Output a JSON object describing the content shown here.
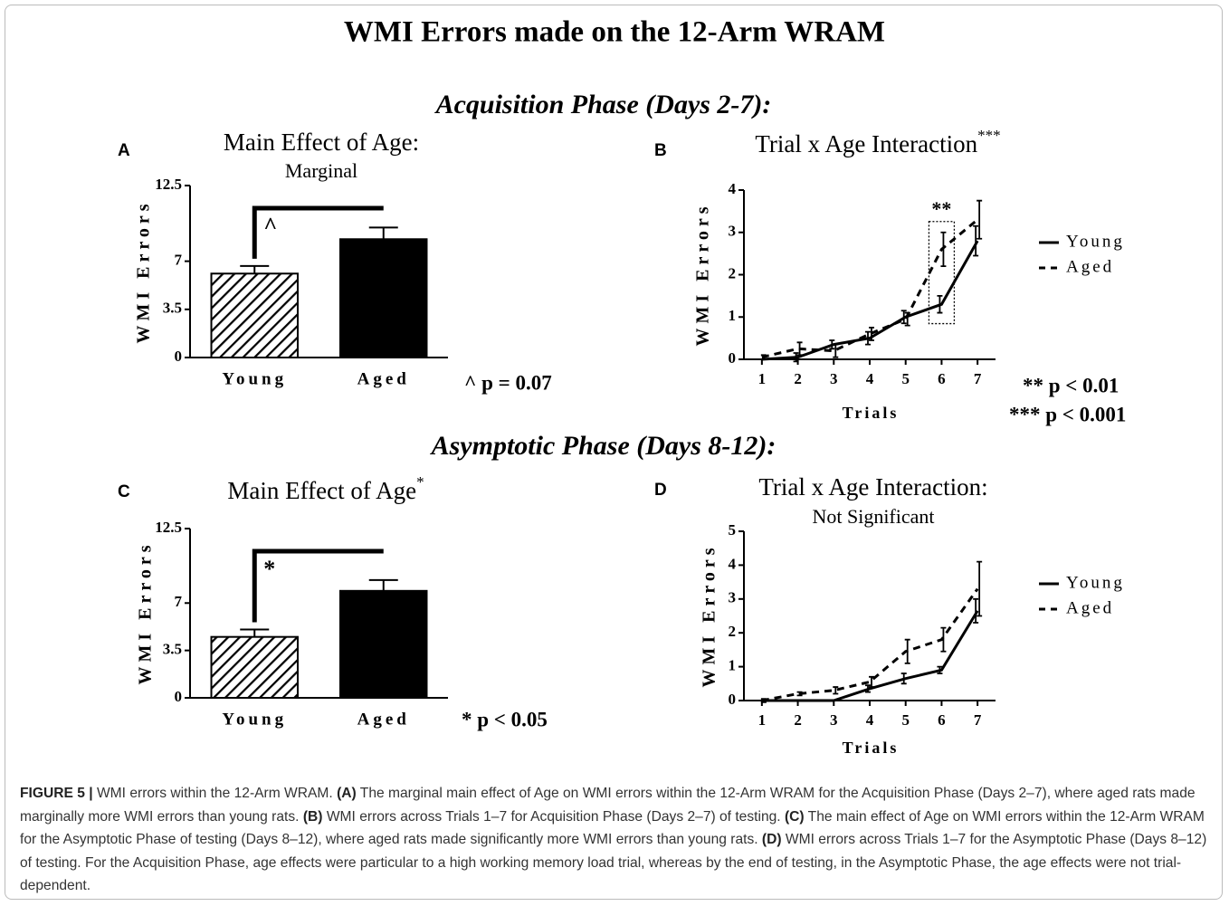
{
  "title": "WMI Errors made on the 12-Arm WRAM",
  "sections": [
    "Acquisition Phase (Days 2-7):",
    "Asymptotic Phase (Days 8-12):"
  ],
  "chart_data": [
    {
      "type": "bar",
      "panel": "A",
      "title": "Main Effect of Age:",
      "subtitle": "Marginal",
      "ylabel": "WMI Errors",
      "categories": [
        "Young",
        "Aged"
      ],
      "values": [
        6.1,
        8.6
      ],
      "errors": [
        0.55,
        0.85
      ],
      "color": "#000000",
      "ylim": [
        0,
        12.5
      ],
      "yticks": [
        0,
        3.5,
        7,
        12.5
      ],
      "significance": "^",
      "notes": [
        "^ p = 0.07"
      ]
    },
    {
      "type": "line",
      "panel": "B",
      "title": "Trial x Age Interaction",
      "title_mark": "***",
      "ylabel": "WMI Errors",
      "xlabel": "Trials",
      "x": [
        1,
        2,
        3,
        4,
        5,
        6,
        7
      ],
      "series": [
        {
          "name": "Young",
          "color": "#000000",
          "dashed": false,
          "values": [
            0,
            0.05,
            0.35,
            0.5,
            1.0,
            1.3,
            2.8
          ],
          "errors": [
            0,
            0.1,
            0.1,
            0.15,
            0.15,
            0.2,
            0.35
          ]
        },
        {
          "name": "Aged",
          "color": "#000000",
          "dashed": true,
          "values": [
            0.05,
            0.25,
            0.2,
            0.6,
            0.95,
            2.6,
            3.3
          ],
          "errors": [
            0.05,
            0.15,
            0.15,
            0.15,
            0.15,
            0.4,
            0.45
          ]
        }
      ],
      "xlim": [
        0.5,
        7.5
      ],
      "xticks": [
        1,
        2,
        3,
        4,
        5,
        6,
        7
      ],
      "ylim": [
        0,
        4
      ],
      "yticks": [
        0,
        1,
        2,
        3,
        4
      ],
      "annotation": {
        "text": "**",
        "x": 6
      },
      "notes": [
        "** p < 0.01",
        "*** p < 0.001"
      ]
    },
    {
      "type": "bar",
      "panel": "C",
      "title": "Main Effect of Age",
      "title_mark": "*",
      "ylabel": "WMI Errors",
      "categories": [
        "Young",
        "Aged"
      ],
      "values": [
        4.5,
        7.9
      ],
      "errors": [
        0.55,
        0.8
      ],
      "color": "#000000",
      "ylim": [
        0,
        12.5
      ],
      "yticks": [
        0,
        3.5,
        7,
        12.5
      ],
      "significance": "*",
      "notes": [
        "* p < 0.05"
      ]
    },
    {
      "type": "line",
      "panel": "D",
      "title": "Trial x Age Interaction:",
      "subtitle": "Not Significant",
      "ylabel": "WMI Errors",
      "xlabel": "Trials",
      "x": [
        1,
        2,
        3,
        4,
        5,
        6,
        7
      ],
      "series": [
        {
          "name": "Young",
          "color": "#000000",
          "dashed": false,
          "values": [
            0,
            0,
            0,
            0.35,
            0.65,
            0.9,
            2.65
          ],
          "errors": [
            0,
            0,
            0,
            0.1,
            0.15,
            0.1,
            0.35
          ]
        },
        {
          "name": "Aged",
          "color": "#000000",
          "dashed": true,
          "values": [
            0,
            0.2,
            0.3,
            0.55,
            1.45,
            1.8,
            3.3
          ],
          "errors": [
            0.05,
            0.05,
            0.1,
            0.15,
            0.35,
            0.35,
            0.8
          ]
        }
      ],
      "xlim": [
        0.5,
        7.5
      ],
      "xticks": [
        1,
        2,
        3,
        4,
        5,
        6,
        7
      ],
      "ylim": [
        0,
        5
      ],
      "yticks": [
        0,
        1,
        2,
        3,
        4,
        5
      ]
    }
  ],
  "caption": [
    "FIGURE 5 |",
    " WMI errors within the 12-Arm WRAM. ",
    "(A)",
    " The marginal main effect of Age on WMI errors within the 12-Arm WRAM for the Acquisition Phase (Days 2–7), where aged rats made marginally more WMI errors than young rats. ",
    "(B)",
    " WMI errors across Trials 1–7 for Acquisition Phase (Days 2–7) of testing. ",
    "(C)",
    " The main effect of Age on WMI errors within the 12-Arm WRAM for the Asymptotic Phase of testing (Days 8–12), where aged rats made significantly more WMI errors than young rats. ",
    "(D)",
    " WMI errors across Trials 1–7 for the Asymptotic Phase (Days 8–12) of testing. For the Acquisition Phase, age effects were particular to a high working memory load trial, whereas by the end of testing, in the Asymptotic Phase, the age effects were not trial-dependent."
  ]
}
